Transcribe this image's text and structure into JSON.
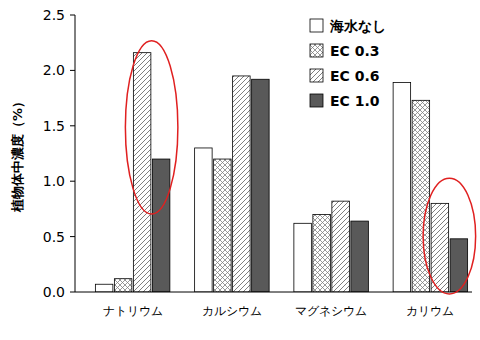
{
  "chart_data": {
    "type": "bar",
    "y_label": "植物体中濃度（%）",
    "categories": [
      "ナトリウム",
      "カルシウム",
      "マグネシウム",
      "カリウム"
    ],
    "series": [
      {
        "name": "海水なし",
        "color": "#ffffff",
        "values": [
          0.07,
          1.3,
          0.62,
          1.89
        ]
      },
      {
        "name": "EC 0.3",
        "color": "#7f7f7f",
        "values": [
          0.12,
          1.2,
          0.7,
          1.73
        ]
      },
      {
        "name": "EC 0.6",
        "color": "#7f7f7f",
        "values": [
          2.16,
          1.95,
          0.82,
          0.8
        ]
      },
      {
        "name": "EC 1.0",
        "color": "#595959",
        "values": [
          1.2,
          1.92,
          0.64,
          0.48
        ]
      }
    ],
    "ylim": [
      0,
      2.5
    ],
    "yticks": [
      {
        "value": 0,
        "label": "0.0"
      },
      0.5,
      {
        "value": 1,
        "label": "1.0"
      },
      1.5,
      {
        "value": 2,
        "label": "2.0"
      },
      2.5
    ],
    "grid": false,
    "legend": "top-right"
  }
}
